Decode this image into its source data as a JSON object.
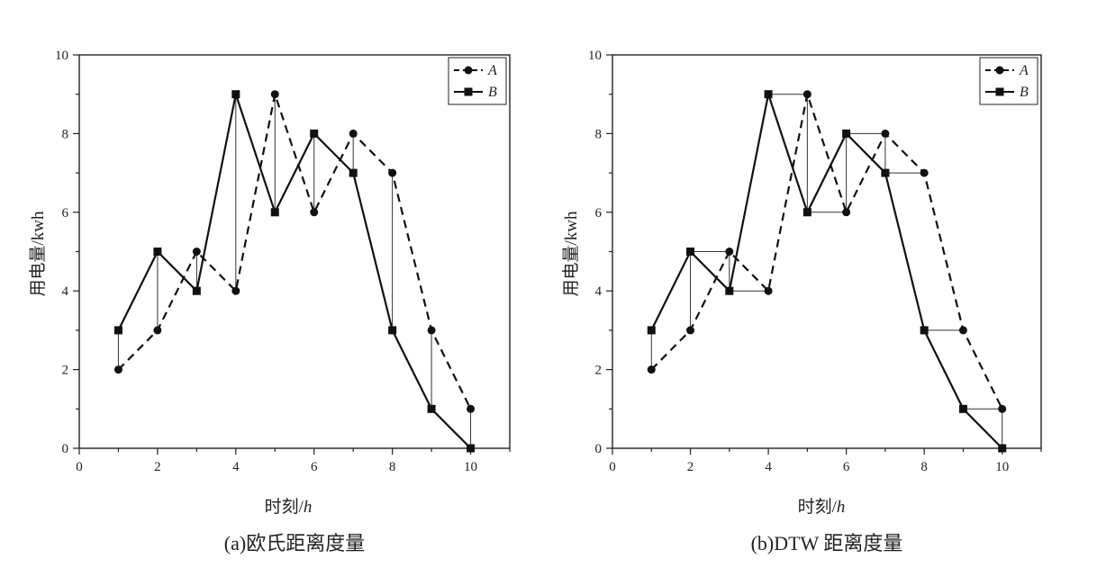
{
  "chart_data": [
    {
      "type": "line",
      "caption": "(a)欧氏距离度量",
      "xlabel_text": "时刻/",
      "xlabel_unit": "h",
      "ylabel": "用电量/kwh",
      "xlim": [
        0,
        11
      ],
      "ylim": [
        0,
        10
      ],
      "xticks": [
        0,
        2,
        4,
        6,
        8,
        10
      ],
      "yticks": [
        0,
        2,
        4,
        6,
        8,
        10
      ],
      "legend_position": "top-right",
      "series": [
        {
          "name": "A",
          "style": "dashed",
          "marker": "circle",
          "x": [
            1,
            2,
            3,
            4,
            5,
            6,
            7,
            8,
            9,
            10
          ],
          "y": [
            2,
            3,
            5,
            4,
            9,
            6,
            8,
            7,
            3,
            1
          ]
        },
        {
          "name": "B",
          "style": "solid",
          "marker": "square",
          "x": [
            1,
            2,
            3,
            4,
            5,
            6,
            7,
            8,
            9,
            10
          ],
          "y": [
            3,
            5,
            4,
            9,
            6,
            8,
            7,
            3,
            1,
            0
          ]
        }
      ],
      "alignment": [
        [
          1,
          1
        ],
        [
          2,
          2
        ],
        [
          3,
          3
        ],
        [
          4,
          4
        ],
        [
          5,
          5
        ],
        [
          6,
          6
        ],
        [
          7,
          7
        ],
        [
          8,
          8
        ],
        [
          9,
          9
        ],
        [
          10,
          10
        ]
      ]
    },
    {
      "type": "line",
      "caption": "(b)DTW 距离度量",
      "xlabel_text": "时刻/",
      "xlabel_unit": "h",
      "ylabel": "用电量/kwh",
      "xlim": [
        0,
        11
      ],
      "ylim": [
        0,
        10
      ],
      "xticks": [
        0,
        2,
        4,
        6,
        8,
        10
      ],
      "yticks": [
        0,
        2,
        4,
        6,
        8,
        10
      ],
      "legend_position": "top-right",
      "series": [
        {
          "name": "A",
          "style": "dashed",
          "marker": "circle",
          "x": [
            1,
            2,
            3,
            4,
            5,
            6,
            7,
            8,
            9,
            10
          ],
          "y": [
            2,
            3,
            5,
            4,
            9,
            6,
            8,
            7,
            3,
            1
          ]
        },
        {
          "name": "B",
          "style": "solid",
          "marker": "square",
          "x": [
            1,
            2,
            3,
            4,
            5,
            6,
            7,
            8,
            9,
            10
          ],
          "y": [
            3,
            5,
            4,
            9,
            6,
            8,
            7,
            3,
            1,
            0
          ]
        }
      ],
      "alignment": [
        [
          1,
          1
        ],
        [
          2,
          2
        ],
        [
          3,
          2
        ],
        [
          3,
          3
        ],
        [
          4,
          3
        ],
        [
          5,
          4
        ],
        [
          5,
          5
        ],
        [
          6,
          5
        ],
        [
          6,
          6
        ],
        [
          7,
          6
        ],
        [
          7,
          7
        ],
        [
          8,
          7
        ],
        [
          9,
          8
        ],
        [
          10,
          9
        ],
        [
          10,
          10
        ]
      ]
    }
  ]
}
